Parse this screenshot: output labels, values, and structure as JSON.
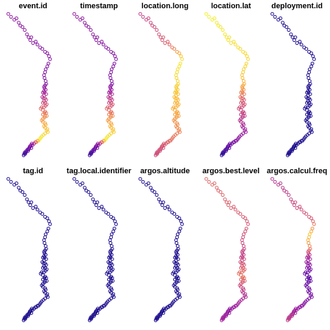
{
  "chart_data": {
    "type": "scatter",
    "layout": {
      "rows": 2,
      "cols": 5
    },
    "marker": "open-circle",
    "axes_shown": false,
    "grid": false,
    "legend": "none",
    "palette": [
      "#0D0887",
      "#5B02A3",
      "#9A179B",
      "#CB4678",
      "#EB7852",
      "#FBB32F",
      "#F0F921"
    ],
    "track": {
      "description_hidden": true,
      "lon": [
        0.05,
        0.1,
        0.16,
        0.2,
        0.24,
        0.27,
        0.31,
        0.35,
        0.39,
        0.42,
        0.45,
        0.47,
        0.5,
        0.55,
        0.58,
        0.63,
        0.67,
        0.72,
        0.76,
        0.79,
        0.81,
        0.78,
        0.76,
        0.73,
        0.72,
        0.7,
        0.71,
        0.73,
        0.74,
        0.72,
        0.7,
        0.71,
        0.73,
        0.7,
        0.68,
        0.71,
        0.74,
        0.7,
        0.67,
        0.69,
        0.72,
        0.74,
        0.7,
        0.68,
        0.72,
        0.75,
        0.73,
        0.7,
        0.66,
        0.64,
        0.68,
        0.72,
        0.74,
        0.71,
        0.68,
        0.72,
        0.75,
        0.71,
        0.68,
        0.66,
        0.68,
        0.72,
        0.73,
        0.7,
        0.72,
        0.76,
        0.75,
        0.77,
        0.72,
        0.69,
        0.66,
        0.64,
        0.62,
        0.6,
        0.58,
        0.56,
        0.54,
        0.52,
        0.48,
        0.46,
        0.49,
        0.45,
        0.44,
        0.47,
        0.43,
        0.42,
        0.4,
        0.41,
        0.38,
        0.37,
        0.35,
        0.34,
        0.36,
        0.33
      ],
      "lat": [
        0.02,
        0.04,
        0.06,
        0.05,
        0.08,
        0.1,
        0.11,
        0.13,
        0.16,
        0.18,
        0.2,
        0.18,
        0.22,
        0.21,
        0.23,
        0.25,
        0.26,
        0.28,
        0.29,
        0.31,
        0.33,
        0.36,
        0.38,
        0.4,
        0.42,
        0.44,
        0.46,
        0.48,
        0.5,
        0.51,
        0.52,
        0.53,
        0.54,
        0.55,
        0.56,
        0.56,
        0.57,
        0.58,
        0.59,
        0.6,
        0.6,
        0.61,
        0.62,
        0.63,
        0.63,
        0.64,
        0.65,
        0.66,
        0.66,
        0.67,
        0.68,
        0.69,
        0.7,
        0.7,
        0.71,
        0.72,
        0.72,
        0.73,
        0.74,
        0.75,
        0.76,
        0.77,
        0.78,
        0.79,
        0.8,
        0.81,
        0.82,
        0.83,
        0.84,
        0.85,
        0.86,
        0.87,
        0.88,
        0.89,
        0.89,
        0.9,
        0.9,
        0.91,
        0.91,
        0.92,
        0.92,
        0.93,
        0.93,
        0.94,
        0.94,
        0.95,
        0.95,
        0.96,
        0.96,
        0.97,
        0.97,
        0.98,
        0.98,
        0.99
      ]
    },
    "panels": [
      {
        "title": "event.id",
        "variable": "event.id",
        "color_stops": [
          [
            0,
            0.3
          ],
          [
            0.3,
            0.25
          ],
          [
            0.5,
            0.55
          ],
          [
            0.6,
            0.7
          ],
          [
            0.78,
            0.98
          ],
          [
            0.84,
            0.3
          ],
          [
            1,
            0.08
          ]
        ]
      },
      {
        "title": "timestamp",
        "variable": "timestamp",
        "color_stops": [
          [
            0,
            0.3
          ],
          [
            0.3,
            0.25
          ],
          [
            0.5,
            0.55
          ],
          [
            0.6,
            0.7
          ],
          [
            0.78,
            0.98
          ],
          [
            0.84,
            0.3
          ],
          [
            1,
            0.08
          ]
        ]
      },
      {
        "title": "location.long",
        "variable": "location.long",
        "color_stops": [
          [
            0,
            0.45
          ],
          [
            0.15,
            0.58
          ],
          [
            0.22,
            0.95
          ],
          [
            0.4,
            0.85
          ],
          [
            0.55,
            0.8
          ],
          [
            0.7,
            0.7
          ],
          [
            0.85,
            0.55
          ],
          [
            1,
            0.5
          ]
        ]
      },
      {
        "title": "location.lat",
        "variable": "location.lat",
        "color_stops": [
          [
            0,
            0.98
          ],
          [
            0.25,
            0.9
          ],
          [
            0.45,
            0.55
          ],
          [
            0.6,
            0.45
          ],
          [
            0.75,
            0.3
          ],
          [
            0.9,
            0.15
          ],
          [
            1,
            0.05
          ]
        ]
      },
      {
        "title": "deployment.id",
        "variable": "deployment.id",
        "color_stops": [
          [
            0,
            0.02
          ],
          [
            1,
            0.02
          ]
        ]
      },
      {
        "title": "tag.id",
        "variable": "tag.id",
        "color_stops": [
          [
            0,
            0.02
          ],
          [
            1,
            0.02
          ]
        ]
      },
      {
        "title": "tag.local.identifier",
        "variable": "tag.local.identifier",
        "color_stops": [
          [
            0,
            0.02
          ],
          [
            1,
            0.02
          ]
        ]
      },
      {
        "title": "argos.altitude",
        "variable": "argos.altitude",
        "color_stops": [
          [
            0,
            0.02
          ],
          [
            1,
            0.02
          ]
        ]
      },
      {
        "title": "argos.best.level",
        "variable": "argos.best.level",
        "color_stops": [
          [
            0,
            0.6
          ],
          [
            0.2,
            0.55
          ],
          [
            0.35,
            0.45
          ],
          [
            0.55,
            0.65
          ],
          [
            0.7,
            0.4
          ],
          [
            0.85,
            0.3
          ],
          [
            1,
            0.35
          ]
        ]
      },
      {
        "title": "argos.calcul.freq",
        "variable": "argos.calcul.freq",
        "color_stops": [
          [
            0,
            0.4
          ],
          [
            0.2,
            0.55
          ],
          [
            0.25,
            0.9
          ],
          [
            0.35,
            0.4
          ],
          [
            0.55,
            0.15
          ],
          [
            0.75,
            0.25
          ],
          [
            1,
            0.45
          ]
        ]
      }
    ]
  }
}
